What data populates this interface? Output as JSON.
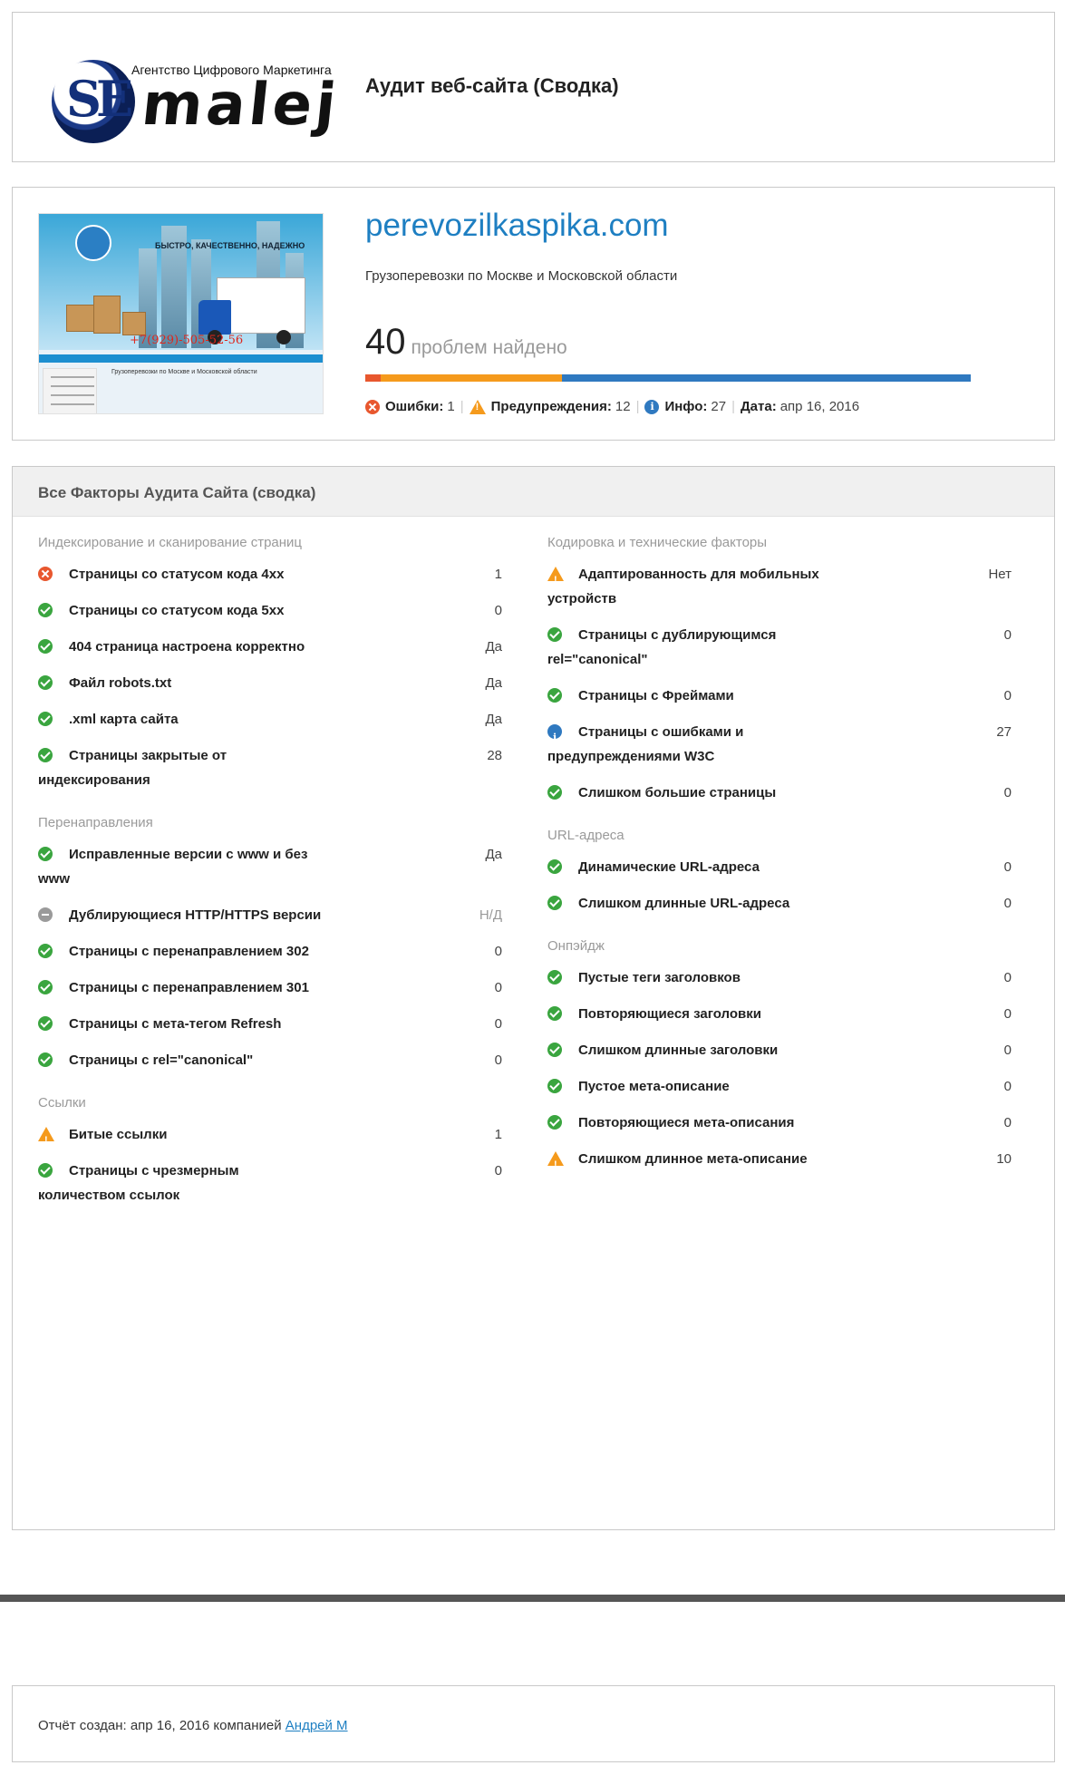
{
  "header": {
    "logo_agency_text": "Агентство Цифрового Маркетинга",
    "logo_se_text": "SE",
    "logo_brand_text": "malej",
    "title": "Аудит веб-сайта (Сводка)"
  },
  "summary": {
    "domain": "perevozilkaspika.com",
    "description": "Грузоперевозки по Москве и Московской области",
    "problems_count": "40",
    "problems_label": "проблем найдено",
    "bar": [
      {
        "name": "errors",
        "value": 1,
        "color": "#e8572e"
      },
      {
        "name": "warnings",
        "value": 12,
        "color": "#f59a1c"
      },
      {
        "name": "info",
        "value": 27,
        "color": "#2f79c0"
      }
    ],
    "stats": {
      "errors_label": "Ошибки:",
      "errors_value": "1",
      "warnings_label": "Предупреждения:",
      "warnings_value": "12",
      "info_label": "Инфо:",
      "info_value": "27",
      "date_label": "Дата:",
      "date_value": "апр 16, 2016"
    },
    "thumbnail": {
      "slogan": "БЫСТРО, КАЧЕСТВЕННО, НАДЕЖНО",
      "phone": "+7(929)-505-52-56",
      "subtitle": "Грузоперевозки по Москве и Московской области"
    }
  },
  "factors": {
    "title": "Все Факторы Аудита Сайта (сводка)",
    "left": [
      {
        "section": "Индексирование и сканирование страниц",
        "items": [
          {
            "icon": "error-icon",
            "label": "Страницы со статусом кода 4xx",
            "value": "1"
          },
          {
            "icon": "check-icon",
            "label": "Страницы со статусом кода 5xx",
            "value": "0"
          },
          {
            "icon": "check-icon",
            "label": "404 страница настроена корректно",
            "value": "Да"
          },
          {
            "icon": "check-icon",
            "label": "Файл robots.txt",
            "value": "Да"
          },
          {
            "icon": "check-icon",
            "label": ".xml карта сайта",
            "value": "Да"
          },
          {
            "icon": "check-icon",
            "label": "Страницы закрытые от индексирования",
            "value": "28"
          }
        ]
      },
      {
        "section": "Перенаправления",
        "items": [
          {
            "icon": "check-icon",
            "label": "Исправленные версии с www и без www",
            "value": "Да"
          },
          {
            "icon": "na-icon",
            "label": "Дублирующиеся HTTP/HTTPS версии",
            "value": "Н/Д"
          },
          {
            "icon": "check-icon",
            "label": "Страницы с перенаправлением 302",
            "value": "0"
          },
          {
            "icon": "check-icon",
            "label": "Страницы с перенаправлением 301",
            "value": "0"
          },
          {
            "icon": "check-icon",
            "label": "Страницы с мета-тегом Refresh",
            "value": "0"
          },
          {
            "icon": "check-icon",
            "label": "Страницы с rel=\"canonical\"",
            "value": "0"
          }
        ]
      },
      {
        "section": "Ссылки",
        "items": [
          {
            "icon": "warning-icon",
            "label": "Битые ссылки",
            "value": "1"
          },
          {
            "icon": "check-icon",
            "label": "Страницы с чрезмерным количеством ссылок",
            "value": "0"
          }
        ]
      }
    ],
    "right": [
      {
        "section": "Кодировка и технические факторы",
        "items": [
          {
            "icon": "warning-icon",
            "label": "Адаптированность для мобильных устройств",
            "value": "Нет"
          },
          {
            "icon": "check-icon",
            "label": "Страницы с дублирующимся rel=\"canonical\"",
            "value": "0"
          },
          {
            "icon": "check-icon",
            "label": "Страницы с Фреймами",
            "value": "0"
          },
          {
            "icon": "info-icon",
            "label": "Страницы с ошибками и предупреждениями W3C",
            "value": "27"
          },
          {
            "icon": "check-icon",
            "label": "Слишком большие страницы",
            "value": "0"
          }
        ]
      },
      {
        "section": "URL-адреса",
        "items": [
          {
            "icon": "check-icon",
            "label": "Динамические URL-адреса",
            "value": "0"
          },
          {
            "icon": "check-icon",
            "label": "Слишком длинные URL-адреса",
            "value": "0"
          }
        ]
      },
      {
        "section": "Онпэйдж",
        "items": [
          {
            "icon": "check-icon",
            "label": "Пустые теги заголовков",
            "value": "0"
          },
          {
            "icon": "check-icon",
            "label": "Повторяющиеся заголовки",
            "value": "0"
          },
          {
            "icon": "check-icon",
            "label": "Слишком длинные заголовки",
            "value": "0"
          },
          {
            "icon": "check-icon",
            "label": "Пустое мета-описание",
            "value": "0"
          },
          {
            "icon": "check-icon",
            "label": "Повторяющиеся мета-описания",
            "value": "0"
          },
          {
            "icon": "warning-icon",
            "label": "Слишком длинное мета-описание",
            "value": "10"
          }
        ]
      }
    ]
  },
  "footer": {
    "text": "Отчёт создан: апр 16, 2016 компанией",
    "author": "Андрей М"
  }
}
